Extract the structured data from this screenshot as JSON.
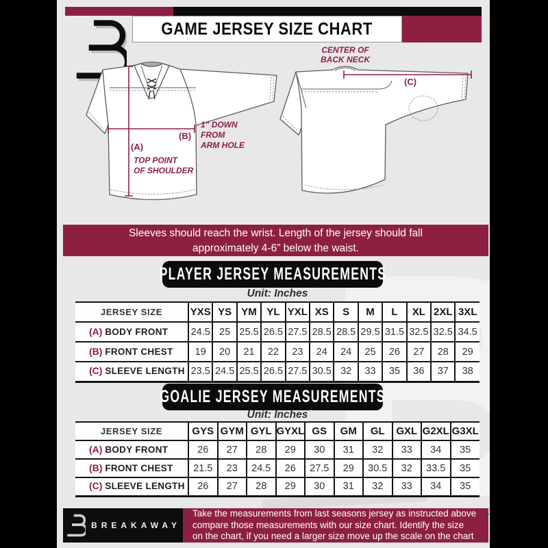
{
  "colors": {
    "maroon": "#8d2040",
    "black": "#0c0c0c",
    "background": "#e8e8e8"
  },
  "header": {
    "title": "GAME JERSEY SIZE CHART"
  },
  "diagram": {
    "front": {
      "a_key": "(A)",
      "a_note": [
        "TOP POINT",
        "OF SHOULDER"
      ],
      "b_key": "(B)",
      "b_note": [
        "1\" DOWN",
        "FROM",
        "ARM HOLE"
      ]
    },
    "back": {
      "c_key": "(C)",
      "c_note": [
        "CENTER OF",
        "BACK NECK"
      ]
    }
  },
  "banner": {
    "lines": [
      "Sleeves should reach the wrist. Length of the jersey should fall",
      "approximately 4-6” below the waist."
    ]
  },
  "player_table": {
    "title": "PLAYER JERSEY MEASUREMENTS",
    "unit": "Unit: Inches",
    "size_header": "JERSEY SIZE",
    "sizes": [
      "YXS",
      "YS",
      "YM",
      "YL",
      "YXL",
      "XS",
      "S",
      "M",
      "L",
      "XL",
      "2XL",
      "3XL"
    ],
    "rows": [
      {
        "key": "(A)",
        "label": "BODY FRONT",
        "values": [
          "24.5",
          "25",
          "25.5",
          "26.5",
          "27.5",
          "28.5",
          "28.5",
          "29.5",
          "31.5",
          "32.5",
          "32.5",
          "34.5"
        ]
      },
      {
        "key": "(B)",
        "label": "FRONT CHEST",
        "values": [
          "19",
          "20",
          "21",
          "22",
          "23",
          "24",
          "24",
          "25",
          "26",
          "27",
          "28",
          "29"
        ]
      },
      {
        "key": "(C)",
        "label": "SLEEVE LENGTH",
        "values": [
          "23.5",
          "24.5",
          "25.5",
          "26.5",
          "27.5",
          "30.5",
          "32",
          "33",
          "35",
          "36",
          "37",
          "38"
        ]
      }
    ]
  },
  "goalie_table": {
    "title": "GOALIE JERSEY MEASUREMENTS",
    "unit": "Unit: Inches",
    "size_header": "JERSEY SIZE",
    "sizes": [
      "GYS",
      "GYM",
      "GYL",
      "GYXL",
      "GS",
      "GM",
      "GL",
      "GXL",
      "G2XL",
      "G3XL"
    ],
    "rows": [
      {
        "key": "(A)",
        "label": "BODY FRONT",
        "values": [
          "26",
          "27",
          "28",
          "29",
          "30",
          "31",
          "32",
          "33",
          "34",
          "35"
        ]
      },
      {
        "key": "(B)",
        "label": "FRONT CHEST",
        "values": [
          "21.5",
          "23",
          "24.5",
          "26",
          "27.5",
          "29",
          "30.5",
          "32",
          "33.5",
          "35"
        ]
      },
      {
        "key": "(C)",
        "label": "SLEEVE LENGTH",
        "values": [
          "26",
          "27",
          "28",
          "29",
          "30",
          "31",
          "32",
          "33",
          "34",
          "35"
        ]
      }
    ]
  },
  "footer": {
    "brand": "BREAKAWAY",
    "lines": [
      "Take the measurements from last seasons jersey as instructed above",
      "compare those measurements  with our size chart. Identify the size",
      "on the chart, if you need a larger size move up the scale on the chart"
    ]
  },
  "watermark_glyph": "B"
}
